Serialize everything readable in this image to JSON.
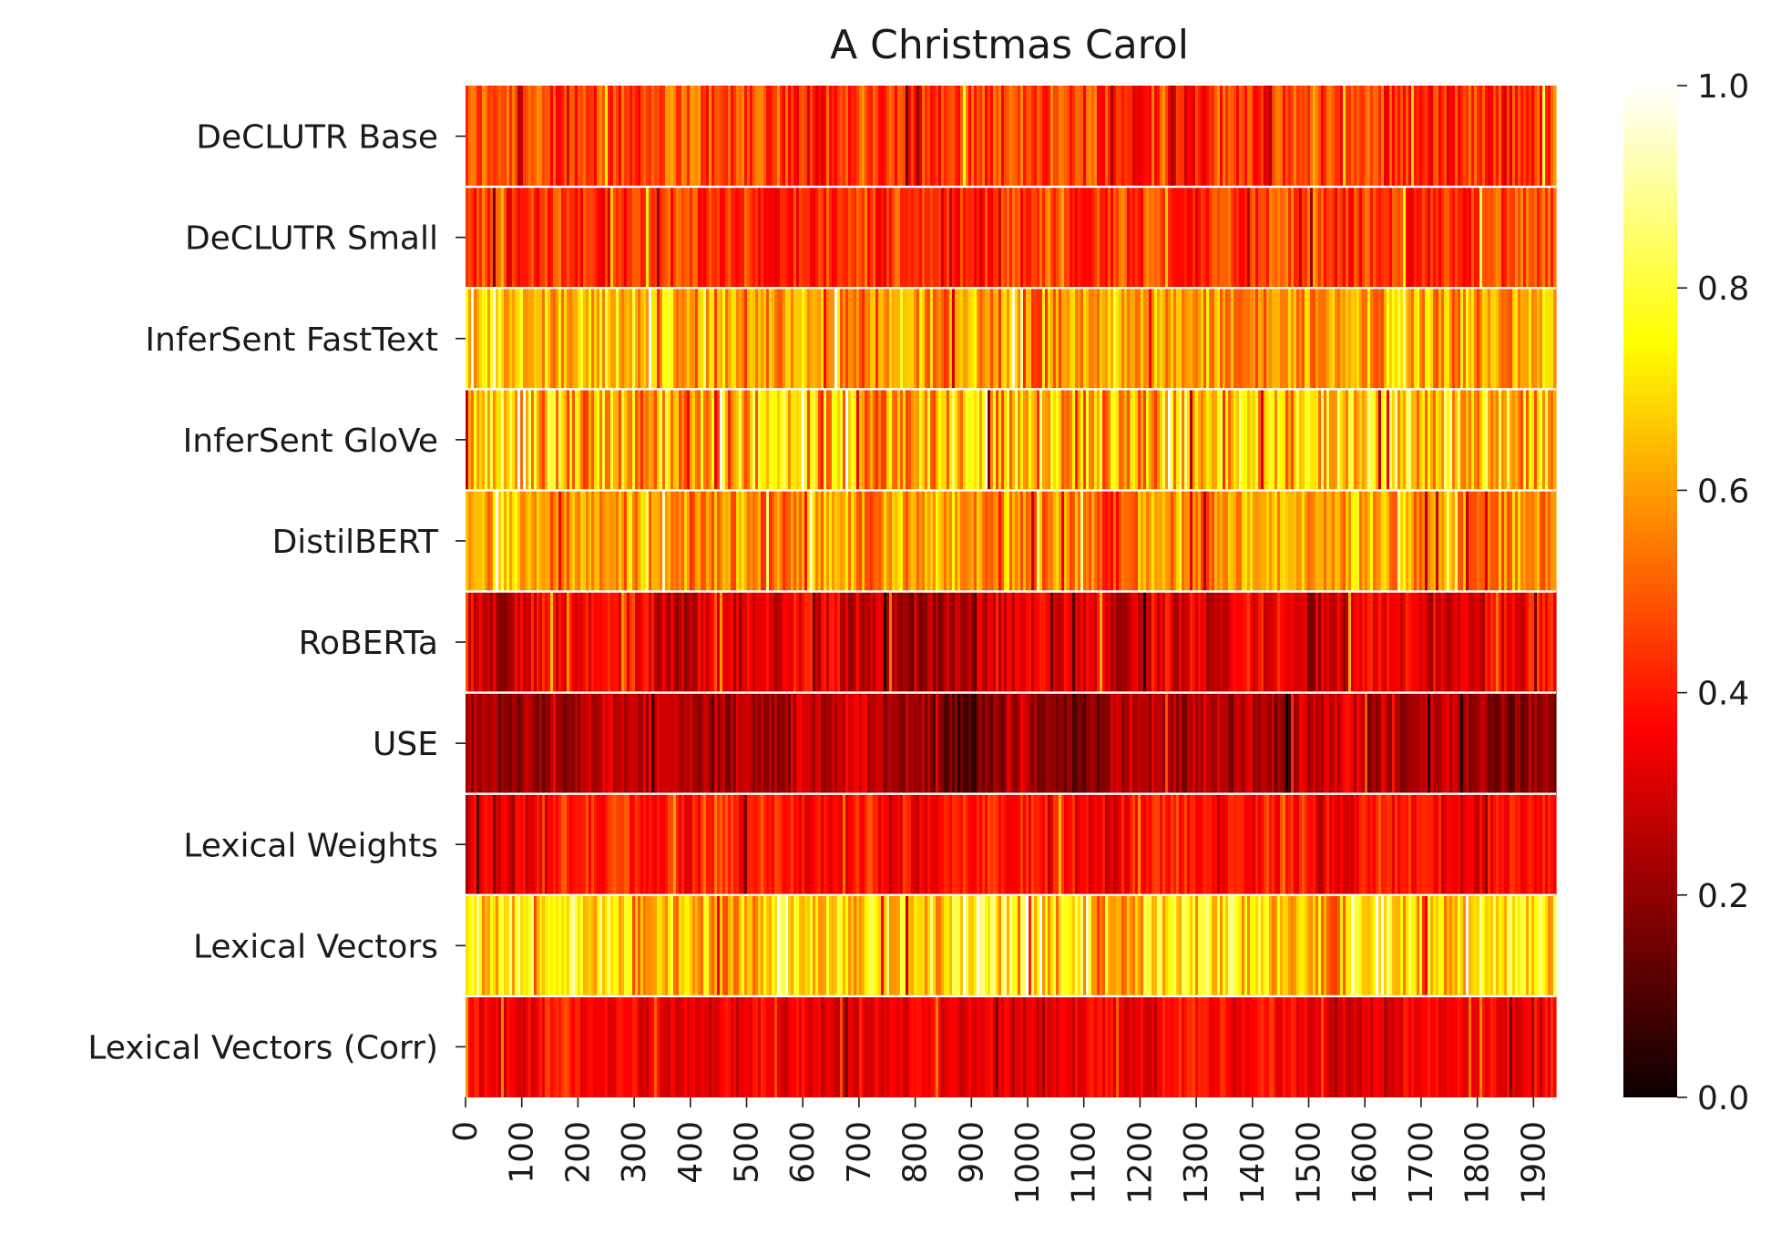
{
  "chart_data": {
    "type": "heatmap",
    "title": "A Christmas Carol",
    "xlabel": "",
    "ylabel": "",
    "rows": [
      "DeCLUTR Base",
      "DeCLUTR Small",
      "InferSent FastText",
      "InferSent GloVe",
      "DistilBERT",
      "RoBERTa",
      "USE",
      "Lexical Weights",
      "Lexical Vectors",
      "Lexical Vectors (Corr)"
    ],
    "x_range": [
      0,
      1940
    ],
    "x_ticks": [
      "0",
      "100",
      "200",
      "300",
      "400",
      "500",
      "600",
      "700",
      "800",
      "900",
      "1000",
      "1100",
      "1200",
      "1300",
      "1400",
      "1500",
      "1600",
      "1700",
      "1800",
      "1900"
    ],
    "row_mean_values": [
      0.45,
      0.44,
      0.6,
      0.66,
      0.58,
      0.32,
      0.22,
      0.38,
      0.7,
      0.34
    ],
    "row_value_spread": [
      0.12,
      0.1,
      0.14,
      0.2,
      0.12,
      0.1,
      0.08,
      0.08,
      0.16,
      0.07
    ],
    "colorbar": {
      "colormap": "hot",
      "vmin": 0.0,
      "vmax": 1.0,
      "ticks": [
        "0.0",
        "0.2",
        "0.4",
        "0.6",
        "0.8",
        "1.0"
      ]
    },
    "grid": false,
    "legend": "none"
  }
}
